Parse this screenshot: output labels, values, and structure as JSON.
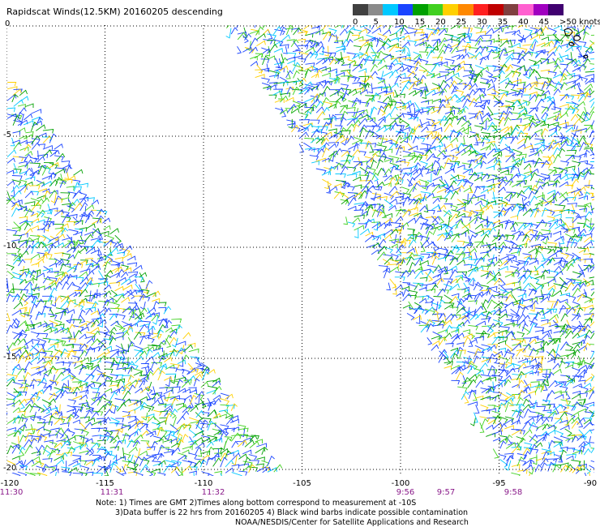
{
  "title": "Rapidscat Winds(12.5KM) 20160205 descending",
  "legend": {
    "colors": [
      "#404040",
      "#8a8a8a",
      "#00c8ff",
      "#1a44ff",
      "#00a000",
      "#40d020",
      "#ffd000",
      "#ff8800",
      "#ff2020",
      "#c00000",
      "#804040",
      "#ff60d0",
      "#a000c0",
      "#400070"
    ],
    "labels": [
      "0",
      "5",
      "10",
      "15",
      "20",
      "25",
      "30",
      "35",
      "40",
      "45",
      ">50 knots"
    ]
  },
  "lat_labels": [
    "0",
    "-5",
    "-10",
    "-15",
    "-20"
  ],
  "lon_labels": [
    "-120",
    "-115",
    "-110",
    "-105",
    "-100",
    "-95",
    "-90"
  ],
  "time_labels": [
    "11:30",
    "11:31",
    "11:32",
    "9:56",
    "9:57",
    "9:58"
  ],
  "notes": [
    "Note: 1) Times are GMT 2)Times along bottom correspond to measurement at -10S",
    "3)Data buffer is 22 hrs from 20160205 4) Black wind barbs indicate possible contamination",
    "NOAA/NESDIS/Center for Satellite Applications and Research"
  ],
  "barb_colors": [
    "#1a44ff",
    "#1a44ff",
    "#1a44ff",
    "#00a000",
    "#40d020",
    "#00c8ff",
    "#ffd000"
  ]
}
